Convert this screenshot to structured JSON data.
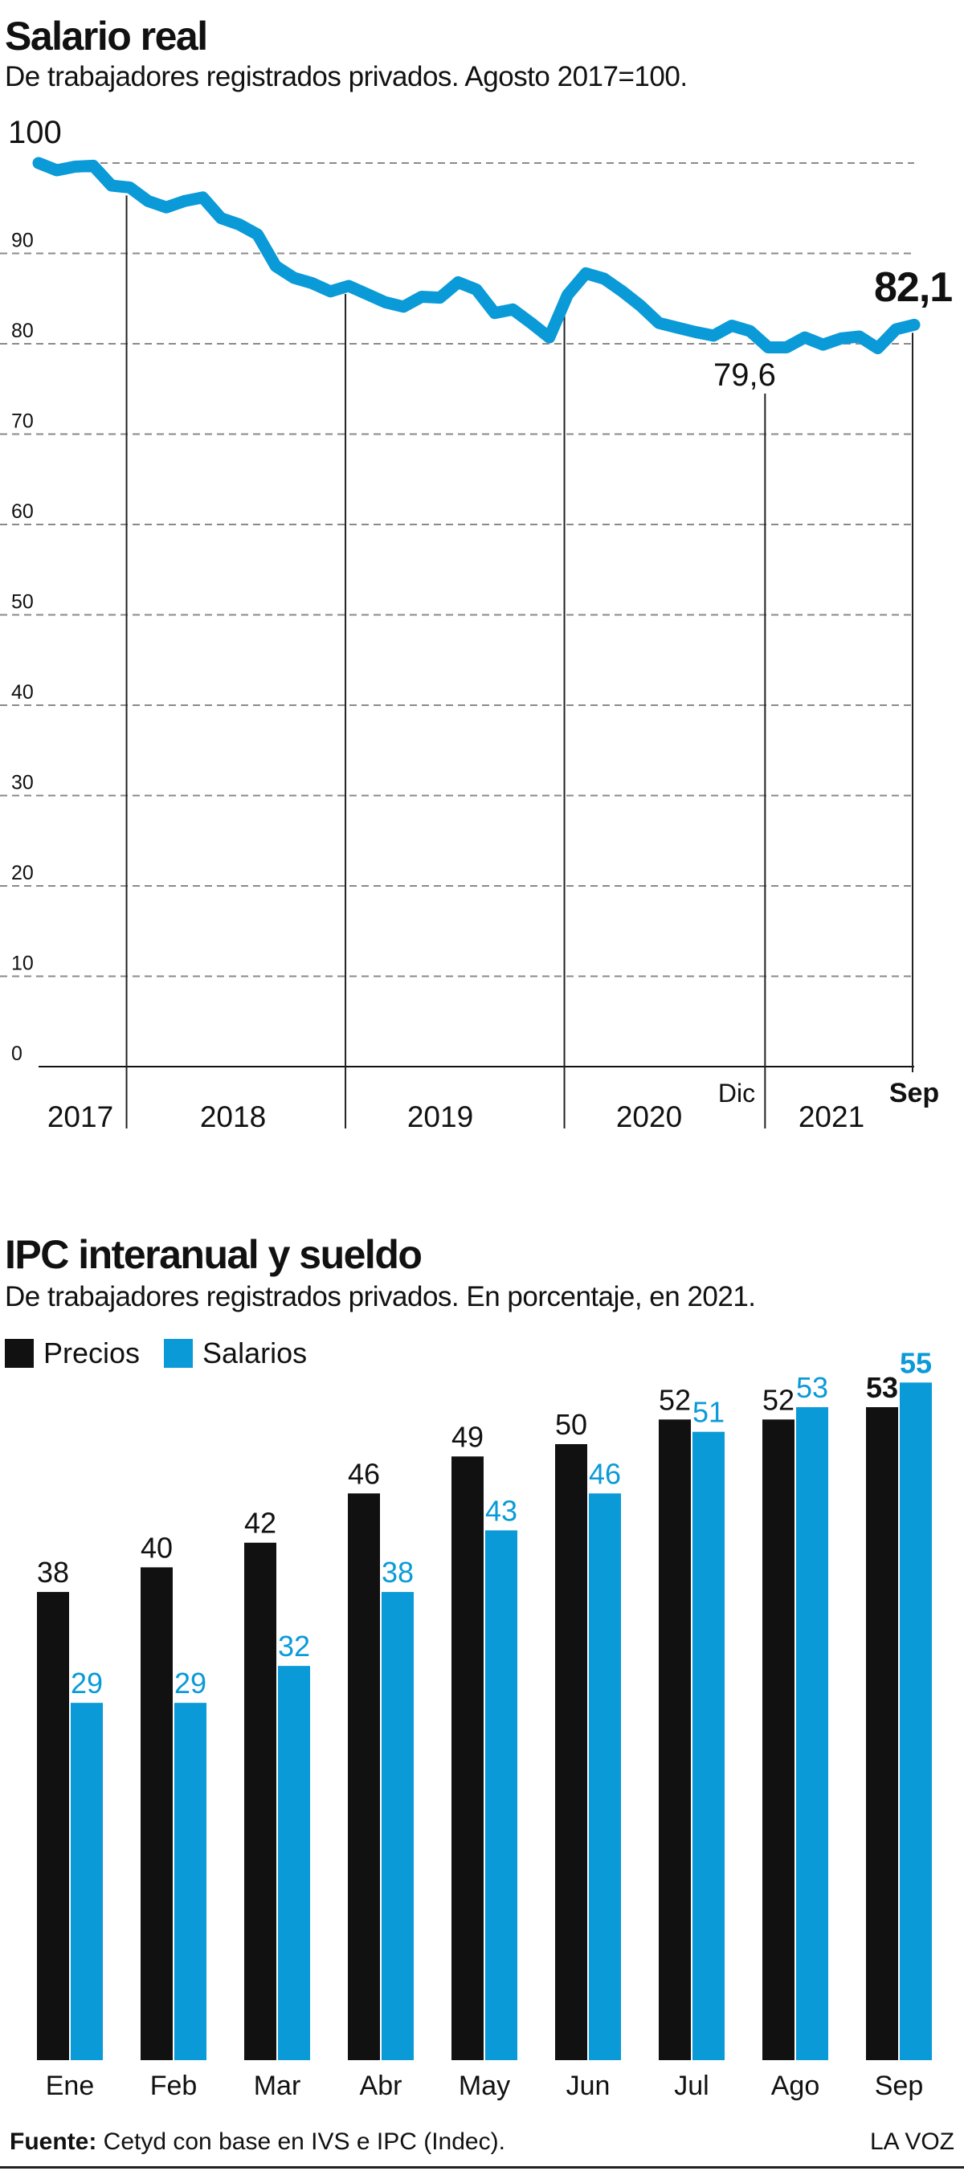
{
  "chart_data": [
    {
      "type": "line",
      "title": "Salario real",
      "subtitle": "De trabajadores registrados privados. Agosto 2017=100.",
      "ylim": [
        0,
        100
      ],
      "yticks": [
        "0",
        "10",
        "20",
        "30",
        "40",
        "50",
        "60",
        "70",
        "80",
        "90",
        "100"
      ],
      "x_start": "Ago 2017",
      "x_end": "Sep 2021",
      "year_labels": [
        "2017",
        "2018",
        "2019",
        "2020",
        "2021"
      ],
      "year_boundaries": [
        "Ene 2018",
        "Ene 2019",
        "Ene 2020",
        "Ene 2021"
      ],
      "series": [
        {
          "color": "#0a9ad8",
          "values": [
            100,
            99.2,
            99.6,
            99.7,
            97.5,
            97.3,
            95.8,
            95.1,
            95.8,
            96.2,
            93.9,
            93.2,
            92.1,
            88.6,
            87.3,
            86.7,
            85.8,
            86.4,
            85.5,
            84.6,
            84.1,
            85.2,
            85.1,
            86.8,
            86.0,
            83.4,
            83.8,
            82.3,
            80.7,
            85.4,
            87.8,
            87.2,
            85.8,
            84.2,
            82.3,
            81.8,
            81.3,
            80.9,
            82.0,
            81.4,
            79.6,
            79.6,
            80.7,
            79.9,
            80.6,
            80.8,
            79.5,
            81.6,
            82.1
          ]
        }
      ],
      "annotations": [
        {
          "label": "100",
          "x": "Ago 2017",
          "y": 100
        },
        {
          "label": "79,6",
          "x": "Dic 2020",
          "y": 79.6
        },
        {
          "label": "82,1",
          "x": "Sep 2021",
          "y": 82.1
        }
      ],
      "marker_labels": [
        "Dic",
        "Sep"
      ],
      "grid": true
    },
    {
      "type": "bar",
      "title": "IPC interanual y sueldo",
      "subtitle": "De trabajadores registrados privados. En porcentaje, en 2021.",
      "categories": [
        "Ene",
        "Feb",
        "Mar",
        "Abr",
        "May",
        "Jun",
        "Jul",
        "Ago",
        "Sep"
      ],
      "ylim": [
        0,
        60
      ],
      "series": [
        {
          "name": "Precios",
          "color": "#111111",
          "values": [
            38,
            40,
            42,
            46,
            49,
            50,
            52,
            52,
            53
          ]
        },
        {
          "name": "Salarios",
          "color": "#0a9ad8",
          "values": [
            29,
            29,
            32,
            38,
            43,
            46,
            51,
            53,
            55
          ]
        }
      ],
      "legend": "top-left"
    }
  ],
  "footer": {
    "source_label": "Fuente:",
    "source_text": " Cetyd con base en IVS e IPC (Indec).",
    "brand": "LA VOZ"
  }
}
